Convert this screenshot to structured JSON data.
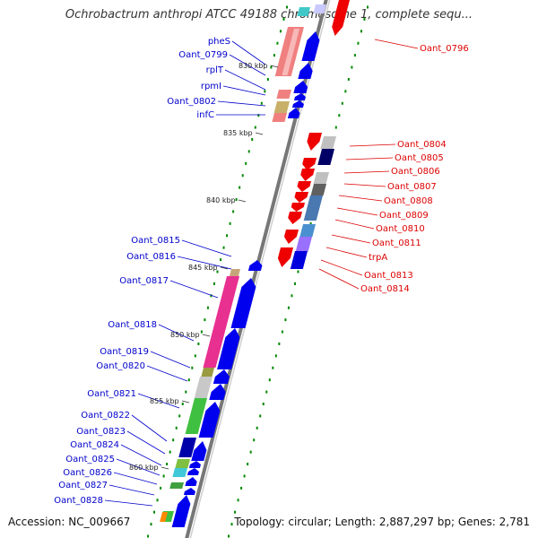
{
  "title": "Ochrobactrum anthropi ATCC 49188 chromosome 1, complete sequ...",
  "accession": "Accession: NC_009667",
  "topology": "Topology: circular; Length: 2,887,297 bp; Genes: 2,781",
  "colors": {
    "left_label": "#0000cc",
    "right_label": "#dd0000",
    "backbone": "#888888",
    "ruler": "#008800"
  },
  "kbp_ticks": [
    "830 kbp",
    "835 kbp",
    "840 kbp",
    "845 kbp",
    "850 kbp",
    "855 kbp",
    "860 kbp"
  ],
  "left_genes": [
    "pheS",
    "Oant_0799",
    "rplT",
    "rpmI",
    "Oant_0802",
    "infC",
    "Oant_0815",
    "Oant_0816",
    "Oant_0817",
    "Oant_0818",
    "Oant_0819",
    "Oant_0820",
    "Oant_0821",
    "Oant_0822",
    "Oant_0823",
    "Oant_0824",
    "Oant_0825",
    "Oant_0826",
    "Oant_0827",
    "Oant_0828"
  ],
  "right_genes": [
    "Oant_0796",
    "Oant_0804",
    "Oant_0805",
    "Oant_0806",
    "Oant_0807",
    "Oant_0808",
    "Oant_0809",
    "Oant_0810",
    "Oant_0811",
    "trpA",
    "Oant_0813",
    "Oant_0814"
  ]
}
